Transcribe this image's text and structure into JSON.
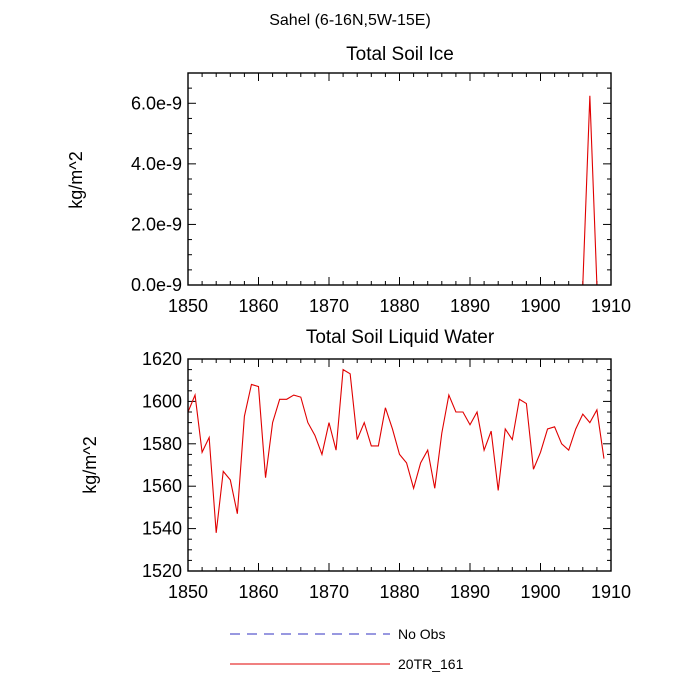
{
  "figure_title": "Sahel (6-16N,5W-15E)",
  "chart_data": [
    {
      "type": "line",
      "title": "Total Soil Ice",
      "ylabel": "kg/m^2",
      "xlabel": "",
      "xlim": [
        1850,
        1910
      ],
      "ylim": [
        0,
        7e-09
      ],
      "xticks": [
        1850,
        1860,
        1870,
        1880,
        1890,
        1900,
        1910
      ],
      "xtick_labels": [
        "1850",
        "1860",
        "1870",
        "1880",
        "1890",
        "1900",
        "1910"
      ],
      "yticks": [
        0,
        2e-09,
        4e-09,
        6e-09
      ],
      "ytick_labels": [
        "0.0e-9",
        "2.0e-9",
        "4.0e-9",
        "6.0e-9"
      ],
      "series": [
        {
          "name": "20TR_161",
          "color": "#e00000",
          "x": [
            1850,
            1851,
            1852,
            1853,
            1854,
            1855,
            1856,
            1857,
            1858,
            1859,
            1860,
            1861,
            1862,
            1863,
            1864,
            1865,
            1866,
            1867,
            1868,
            1869,
            1870,
            1871,
            1872,
            1873,
            1874,
            1875,
            1876,
            1877,
            1878,
            1879,
            1880,
            1881,
            1882,
            1883,
            1884,
            1885,
            1886,
            1887,
            1888,
            1889,
            1890,
            1891,
            1892,
            1893,
            1894,
            1895,
            1896,
            1897,
            1898,
            1899,
            1900,
            1901,
            1902,
            1903,
            1904,
            1905,
            1906,
            1907,
            1908,
            1909
          ],
          "values": [
            0,
            0,
            0,
            0,
            0,
            0,
            0,
            0,
            0,
            0,
            0,
            0,
            0,
            0,
            0,
            0,
            0,
            0,
            0,
            0,
            0,
            0,
            0,
            0,
            0,
            0,
            0,
            0,
            0,
            0,
            0,
            0,
            0,
            0,
            0,
            0,
            0,
            0,
            0,
            0,
            0,
            0,
            0,
            0,
            0,
            0,
            0,
            0,
            0,
            0,
            0,
            0,
            0,
            0,
            0,
            0,
            0,
            6.25e-09,
            0,
            0
          ]
        }
      ]
    },
    {
      "type": "line",
      "title": "Total Soil Liquid Water",
      "ylabel": "kg/m^2",
      "xlabel": "",
      "xlim": [
        1850,
        1910
      ],
      "ylim": [
        1520,
        1620
      ],
      "xticks": [
        1850,
        1860,
        1870,
        1880,
        1890,
        1900,
        1910
      ],
      "xtick_labels": [
        "1850",
        "1860",
        "1870",
        "1880",
        "1890",
        "1900",
        "1910"
      ],
      "yticks": [
        1520,
        1540,
        1560,
        1580,
        1600,
        1620
      ],
      "ytick_labels": [
        "1520",
        "1540",
        "1560",
        "1580",
        "1600",
        "1620"
      ],
      "series": [
        {
          "name": "20TR_161",
          "color": "#e00000",
          "x": [
            1850,
            1851,
            1852,
            1853,
            1854,
            1855,
            1856,
            1857,
            1858,
            1859,
            1860,
            1861,
            1862,
            1863,
            1864,
            1865,
            1866,
            1867,
            1868,
            1869,
            1870,
            1871,
            1872,
            1873,
            1874,
            1875,
            1876,
            1877,
            1878,
            1879,
            1880,
            1881,
            1882,
            1883,
            1884,
            1885,
            1886,
            1887,
            1888,
            1889,
            1890,
            1891,
            1892,
            1893,
            1894,
            1895,
            1896,
            1897,
            1898,
            1899,
            1900,
            1901,
            1902,
            1903,
            1904,
            1905,
            1906,
            1907,
            1908,
            1909
          ],
          "values": [
            1595,
            1603,
            1576,
            1583,
            1538,
            1567,
            1563,
            1547,
            1593,
            1608,
            1607,
            1564,
            1590,
            1601,
            1601,
            1603,
            1602,
            1590,
            1584,
            1575,
            1590,
            1577,
            1615,
            1613,
            1582,
            1590,
            1579,
            1579,
            1597,
            1587,
            1575,
            1571,
            1559,
            1571,
            1577,
            1559,
            1585,
            1603,
            1595,
            1595,
            1589,
            1595,
            1577,
            1586,
            1558,
            1587,
            1582,
            1601,
            1599,
            1568,
            1576,
            1587,
            1588,
            1580,
            1577,
            1587,
            1594,
            1590,
            1596,
            1573
          ]
        }
      ]
    }
  ],
  "legend": [
    {
      "label": "No Obs",
      "color": "#3030c0",
      "style": "dashed"
    },
    {
      "label": "20TR_161",
      "color": "#e00000",
      "style": "solid"
    }
  ]
}
